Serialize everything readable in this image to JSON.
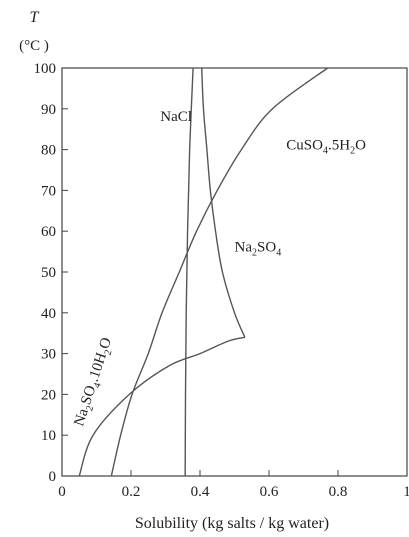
{
  "chart_data": {
    "type": "line",
    "title": "",
    "ylabel_symbol": "T",
    "ylabel_unit": "(°C )",
    "xlabel": "Solubility (kg salts / kg water)",
    "xlim": [
      0,
      1
    ],
    "ylim": [
      0,
      100
    ],
    "xticks": [
      "0",
      "0.2",
      "0.4",
      "0.6",
      "0.8",
      "1"
    ],
    "xtick_values": [
      0,
      0.2,
      0.4,
      0.6,
      0.8,
      1
    ],
    "yticks": [
      "0",
      "10",
      "20",
      "30",
      "40",
      "50",
      "60",
      "70",
      "80",
      "90",
      "100"
    ],
    "ytick_values": [
      0,
      10,
      20,
      30,
      40,
      50,
      60,
      70,
      80,
      90,
      100
    ],
    "grid": false,
    "series": [
      {
        "name": "NaCl",
        "color": "#555555",
        "points": [
          [
            0.357,
            0
          ],
          [
            0.358,
            20
          ],
          [
            0.36,
            40
          ],
          [
            0.364,
            60
          ],
          [
            0.37,
            80
          ],
          [
            0.38,
            100
          ]
        ]
      },
      {
        "name": "CuSO4.5H2O",
        "color": "#555555",
        "points": [
          [
            0.143,
            0
          ],
          [
            0.17,
            10
          ],
          [
            0.203,
            20
          ],
          [
            0.25,
            30
          ],
          [
            0.29,
            40
          ],
          [
            0.34,
            50
          ],
          [
            0.39,
            60
          ],
          [
            0.45,
            70
          ],
          [
            0.52,
            80
          ],
          [
            0.61,
            90
          ],
          [
            0.77,
            100
          ]
        ]
      },
      {
        "name": "Na2SO4.10H2O",
        "color": "#555555",
        "points": [
          [
            0.05,
            0
          ],
          [
            0.09,
            10
          ],
          [
            0.195,
            20
          ],
          [
            0.31,
            27
          ],
          [
            0.4,
            30
          ],
          [
            0.48,
            33
          ],
          [
            0.53,
            34
          ]
        ]
      },
      {
        "name": "Na2SO4",
        "color": "#555555",
        "points": [
          [
            0.53,
            34
          ],
          [
            0.5,
            40
          ],
          [
            0.465,
            50
          ],
          [
            0.445,
            60
          ],
          [
            0.43,
            70
          ],
          [
            0.42,
            80
          ],
          [
            0.41,
            90
          ],
          [
            0.405,
            100
          ]
        ]
      }
    ],
    "annotations": [
      {
        "text": "NaCl",
        "x": 0.285,
        "y": 87
      },
      {
        "text": "CuSO4.5H2O",
        "x": 0.65,
        "y": 80
      },
      {
        "text": "Na2SO4",
        "x": 0.5,
        "y": 55
      },
      {
        "text": "Na2SO4.10H2O",
        "x": 0.06,
        "y": 12
      }
    ]
  }
}
